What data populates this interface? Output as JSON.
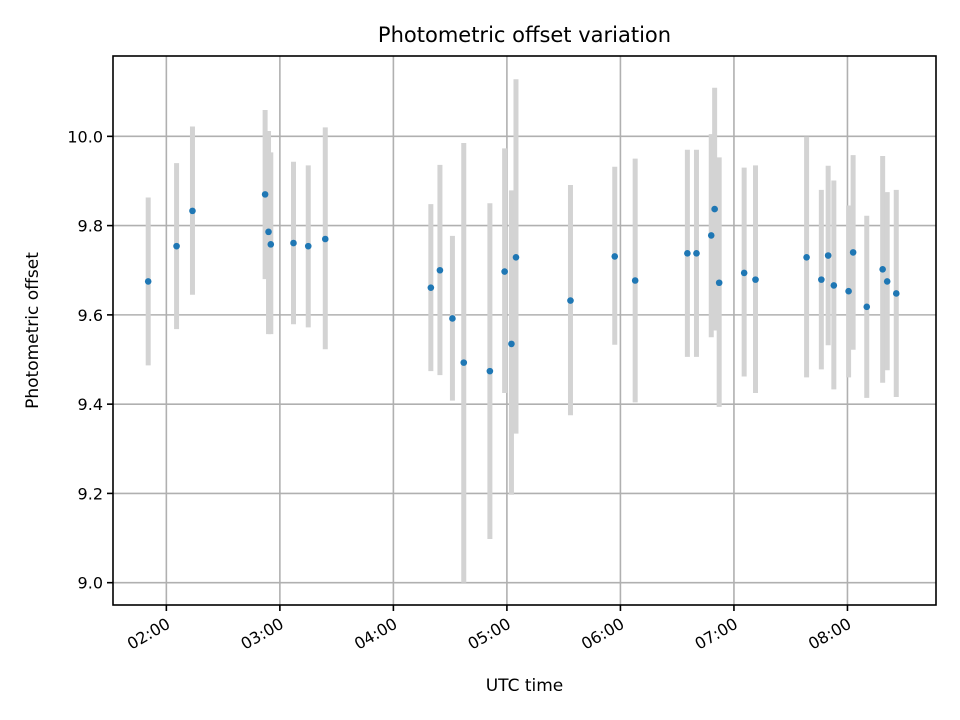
{
  "chart_data": {
    "type": "scatter",
    "title": "Photometric offset variation",
    "xlabel": "UTC time",
    "ylabel": "Photometric offset",
    "x_unit": "hour of day (UTC)",
    "xlim": [
      1.53,
      8.78
    ],
    "ylim": [
      8.95,
      10.18
    ],
    "x_ticks": [
      2,
      3,
      4,
      5,
      6,
      7,
      8
    ],
    "x_tick_labels": [
      "02:00",
      "03:00",
      "04:00",
      "05:00",
      "06:00",
      "07:00",
      "08:00"
    ],
    "y_ticks": [
      9.0,
      9.2,
      9.4,
      9.6,
      9.8,
      10.0
    ],
    "y_tick_labels": [
      "9.0",
      "9.2",
      "9.4",
      "9.6",
      "9.8",
      "10.0"
    ],
    "grid": true,
    "colors": {
      "point": "#1f77b4",
      "errorbar": "#d3d3d3",
      "grid": "#b0b0b0"
    },
    "points": [
      {
        "x": 1.84,
        "y": 9.675,
        "ylow": 9.487,
        "yhigh": 9.863
      },
      {
        "x": 2.09,
        "y": 9.754,
        "ylow": 9.568,
        "yhigh": 9.94
      },
      {
        "x": 2.23,
        "y": 9.833,
        "ylow": 9.645,
        "yhigh": 10.022
      },
      {
        "x": 2.87,
        "y": 9.87,
        "ylow": 9.68,
        "yhigh": 10.059
      },
      {
        "x": 2.9,
        "y": 9.786,
        "ylow": 9.557,
        "yhigh": 10.012
      },
      {
        "x": 2.92,
        "y": 9.758,
        "ylow": 9.557,
        "yhigh": 9.964
      },
      {
        "x": 3.12,
        "y": 9.761,
        "ylow": 9.579,
        "yhigh": 9.943
      },
      {
        "x": 3.25,
        "y": 9.754,
        "ylow": 9.572,
        "yhigh": 9.935
      },
      {
        "x": 3.4,
        "y": 9.77,
        "ylow": 9.523,
        "yhigh": 10.02
      },
      {
        "x": 4.33,
        "y": 9.661,
        "ylow": 9.474,
        "yhigh": 9.848
      },
      {
        "x": 4.41,
        "y": 9.7,
        "ylow": 9.465,
        "yhigh": 9.936
      },
      {
        "x": 4.52,
        "y": 9.592,
        "ylow": 9.408,
        "yhigh": 9.777
      },
      {
        "x": 4.62,
        "y": 9.493,
        "ylow": 9.0,
        "yhigh": 9.985
      },
      {
        "x": 4.85,
        "y": 9.474,
        "ylow": 9.098,
        "yhigh": 9.85
      },
      {
        "x": 4.98,
        "y": 9.697,
        "ylow": 9.425,
        "yhigh": 9.973
      },
      {
        "x": 5.04,
        "y": 9.535,
        "ylow": 9.197,
        "yhigh": 9.879
      },
      {
        "x": 5.08,
        "y": 9.729,
        "ylow": 9.334,
        "yhigh": 10.128
      },
      {
        "x": 5.56,
        "y": 9.632,
        "ylow": 9.375,
        "yhigh": 9.891
      },
      {
        "x": 5.95,
        "y": 9.731,
        "ylow": 9.533,
        "yhigh": 9.932
      },
      {
        "x": 6.13,
        "y": 9.677,
        "ylow": 9.404,
        "yhigh": 9.95
      },
      {
        "x": 6.59,
        "y": 9.738,
        "ylow": 9.506,
        "yhigh": 9.97
      },
      {
        "x": 6.67,
        "y": 9.738,
        "ylow": 9.506,
        "yhigh": 9.97
      },
      {
        "x": 6.8,
        "y": 9.778,
        "ylow": 9.55,
        "yhigh": 10.005
      },
      {
        "x": 6.83,
        "y": 9.837,
        "ylow": 9.565,
        "yhigh": 10.109
      },
      {
        "x": 6.87,
        "y": 9.672,
        "ylow": 9.394,
        "yhigh": 9.953
      },
      {
        "x": 7.09,
        "y": 9.694,
        "ylow": 9.462,
        "yhigh": 9.93
      },
      {
        "x": 7.19,
        "y": 9.679,
        "ylow": 9.425,
        "yhigh": 9.935
      },
      {
        "x": 7.64,
        "y": 9.729,
        "ylow": 9.46,
        "yhigh": 9.999
      },
      {
        "x": 7.77,
        "y": 9.679,
        "ylow": 9.478,
        "yhigh": 9.88
      },
      {
        "x": 7.83,
        "y": 9.733,
        "ylow": 9.532,
        "yhigh": 9.934
      },
      {
        "x": 7.88,
        "y": 9.666,
        "ylow": 9.433,
        "yhigh": 9.901
      },
      {
        "x": 8.01,
        "y": 9.653,
        "ylow": 9.46,
        "yhigh": 9.845
      },
      {
        "x": 8.05,
        "y": 9.74,
        "ylow": 9.522,
        "yhigh": 9.958
      },
      {
        "x": 8.17,
        "y": 9.618,
        "ylow": 9.414,
        "yhigh": 9.822
      },
      {
        "x": 8.31,
        "y": 9.702,
        "ylow": 9.448,
        "yhigh": 9.956
      },
      {
        "x": 8.35,
        "y": 9.675,
        "ylow": 9.476,
        "yhigh": 9.875
      },
      {
        "x": 8.43,
        "y": 9.648,
        "ylow": 9.416,
        "yhigh": 9.88
      }
    ]
  }
}
